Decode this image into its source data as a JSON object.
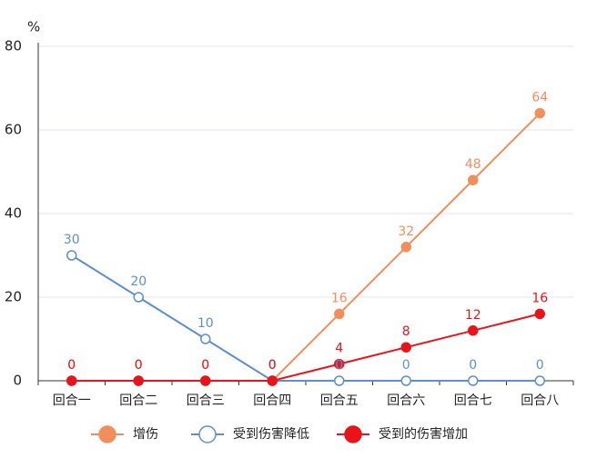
{
  "chart_data": {
    "type": "line",
    "y_label": "%",
    "categories": [
      "回合一",
      "回合二",
      "回合三",
      "回合四",
      "回合五",
      "回合六",
      "回合七",
      "回合八"
    ],
    "series": [
      {
        "name": "增伤",
        "color": "#f28e5b",
        "marker": "filled",
        "values": [
          0,
          0,
          0,
          0,
          16,
          32,
          48,
          64
        ]
      },
      {
        "name": "受到伤害降低",
        "color": "#5b8fd1",
        "marker": "hollow",
        "values": [
          30,
          20,
          10,
          0,
          0,
          0,
          0,
          0
        ]
      },
      {
        "name": "受到的伤害增加",
        "color": "#e8141a",
        "marker": "filled",
        "values": [
          0,
          0,
          0,
          0,
          4,
          8,
          12,
          16
        ]
      }
    ],
    "ylim": [
      0,
      80
    ],
    "yticks": [
      0,
      20,
      40,
      60,
      80
    ],
    "grid": true,
    "legend": "bottom"
  }
}
